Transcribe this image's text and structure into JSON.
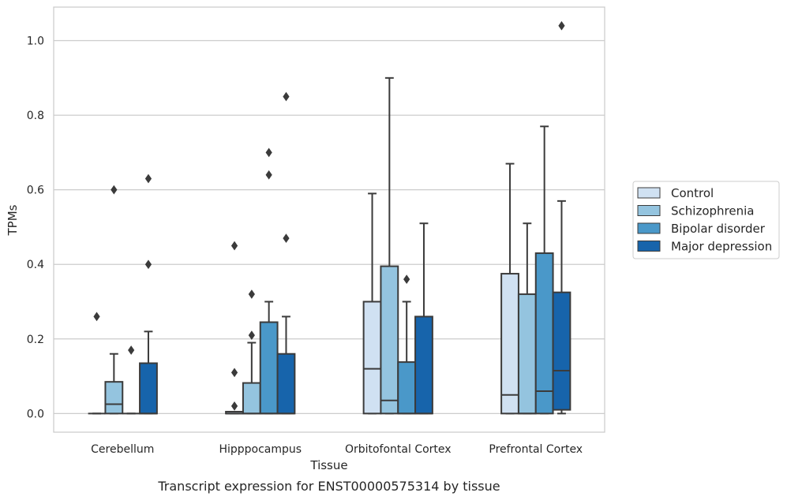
{
  "chart_data": {
    "type": "box",
    "caption": "Transcript expression for ENST00000575314 by tissue",
    "xlabel": "Tissue",
    "ylabel": "TPMs",
    "ylim": [
      -0.05,
      1.09
    ],
    "yticks": [
      0.0,
      0.2,
      0.4,
      0.6,
      0.8,
      1.0
    ],
    "ytick_labels": [
      "0.0",
      "0.2",
      "0.4",
      "0.6",
      "0.8",
      "1.0"
    ],
    "grid": true,
    "legend_position": "right",
    "categories": [
      "Cerebellum",
      "Hipppocampus",
      "Orbitofontal Cortex",
      "Prefrontal Cortex"
    ],
    "series": [
      {
        "name": "Control",
        "color": "#d0e1f2",
        "boxes": [
          {
            "whislo": 0.0,
            "q1": 0.0,
            "med": 0.0,
            "q3": 0.0,
            "whishi": 0.0,
            "fliers": [
              0.26
            ]
          },
          {
            "whislo": 0.0,
            "q1": 0.0,
            "med": 0.0,
            "q3": 0.005,
            "whishi": 0.005,
            "fliers": [
              0.02,
              0.11,
              0.45
            ]
          },
          {
            "whislo": 0.0,
            "q1": 0.0,
            "med": 0.12,
            "q3": 0.3,
            "whishi": 0.59,
            "fliers": []
          },
          {
            "whislo": 0.0,
            "q1": 0.0,
            "med": 0.05,
            "q3": 0.375,
            "whishi": 0.67,
            "fliers": []
          }
        ]
      },
      {
        "name": "Schizophrenia",
        "color": "#94c4df",
        "boxes": [
          {
            "whislo": 0.0,
            "q1": 0.0,
            "med": 0.025,
            "q3": 0.085,
            "whishi": 0.16,
            "fliers": [
              0.6
            ]
          },
          {
            "whislo": 0.0,
            "q1": 0.0,
            "med": 0.0,
            "q3": 0.082,
            "whishi": 0.19,
            "fliers": [
              0.21,
              0.32
            ]
          },
          {
            "whislo": 0.0,
            "q1": 0.0,
            "med": 0.035,
            "q3": 0.395,
            "whishi": 0.9,
            "fliers": []
          },
          {
            "whislo": 0.0,
            "q1": 0.0,
            "med": 0.0,
            "q3": 0.32,
            "whishi": 0.51,
            "fliers": []
          }
        ]
      },
      {
        "name": "Bipolar disorder",
        "color": "#4a98c9",
        "boxes": [
          {
            "whislo": 0.0,
            "q1": 0.0,
            "med": 0.0,
            "q3": 0.0,
            "whishi": 0.0,
            "fliers": [
              0.17
            ]
          },
          {
            "whislo": 0.0,
            "q1": 0.0,
            "med": 0.0,
            "q3": 0.245,
            "whishi": 0.3,
            "fliers": [
              0.64,
              0.7
            ]
          },
          {
            "whislo": 0.0,
            "q1": 0.0,
            "med": 0.0,
            "q3": 0.138,
            "whishi": 0.3,
            "fliers": [
              0.36
            ]
          },
          {
            "whislo": 0.0,
            "q1": 0.0,
            "med": 0.06,
            "q3": 0.43,
            "whishi": 0.77,
            "fliers": []
          }
        ]
      },
      {
        "name": "Major depression",
        "color": "#1764ab",
        "boxes": [
          {
            "whislo": 0.0,
            "q1": 0.0,
            "med": 0.0,
            "q3": 0.135,
            "whishi": 0.22,
            "fliers": [
              0.4,
              0.63
            ]
          },
          {
            "whislo": 0.0,
            "q1": 0.0,
            "med": 0.0,
            "q3": 0.16,
            "whishi": 0.26,
            "fliers": [
              0.47,
              0.85
            ]
          },
          {
            "whislo": 0.0,
            "q1": 0.0,
            "med": 0.0,
            "q3": 0.26,
            "whishi": 0.51,
            "fliers": []
          },
          {
            "whislo": 0.0,
            "q1": 0.01,
            "med": 0.115,
            "q3": 0.325,
            "whishi": 0.57,
            "fliers": [
              1.04
            ]
          }
        ]
      }
    ]
  }
}
